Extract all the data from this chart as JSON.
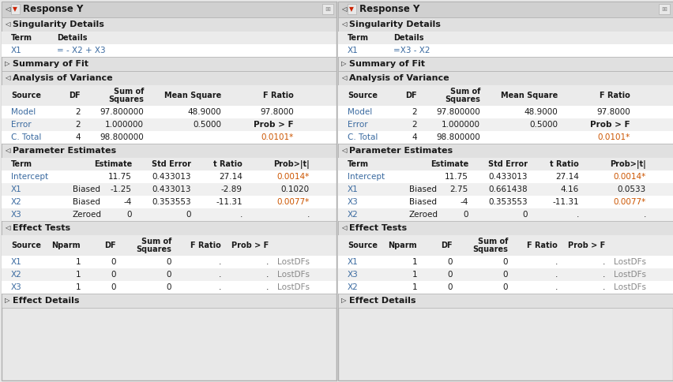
{
  "bg": "#e8e8e8",
  "panel_bg": "#f4f4f4",
  "header_bar_bg": "#d0d0d0",
  "section_hdr_bg": "#e0e0e0",
  "table_hdr_bg": "#ebebeb",
  "row_white": "#ffffff",
  "row_alt": "#f0f0f0",
  "blue": "#3a6aa0",
  "orange": "#cc5500",
  "black": "#1a1a1a",
  "gray": "#888888",
  "border": "#b0b0b0",
  "models": [
    {
      "title": "Response Y",
      "singularity_detail": [
        "X1",
        "= - X2 + X3"
      ],
      "anova": [
        [
          "Model",
          "2",
          "97.800000",
          "48.9000",
          "97.8000",
          "normal",
          "normal"
        ],
        [
          "Error",
          "2",
          "1.000000",
          "0.5000",
          "Prob > F",
          "normal",
          "bold"
        ],
        [
          "C. Total",
          "4",
          "98.800000",
          "",
          "0.0101*",
          "normal",
          "orange"
        ]
      ],
      "params": [
        [
          "Intercept",
          "",
          "11.75",
          "0.433013",
          "27.14",
          "0.0014*"
        ],
        [
          "X1",
          "Biased",
          "-1.25",
          "0.433013",
          "-2.89",
          "0.1020"
        ],
        [
          "X2",
          "Biased",
          "-4",
          "0.353553",
          "-11.31",
          "0.0077*"
        ],
        [
          "X3",
          "Zeroed",
          "0",
          "0",
          ".",
          "."
        ]
      ],
      "effects": [
        [
          "X1",
          "1",
          "0",
          "0",
          ".",
          ".",
          "LostDFs"
        ],
        [
          "X2",
          "1",
          "0",
          "0",
          ".",
          ".",
          "LostDFs"
        ],
        [
          "X3",
          "1",
          "0",
          "0",
          ".",
          ".",
          "LostDFs"
        ]
      ]
    },
    {
      "title": "Response Y",
      "singularity_detail": [
        "X1",
        "=X3 - X2"
      ],
      "anova": [
        [
          "Model",
          "2",
          "97.800000",
          "48.9000",
          "97.8000",
          "normal",
          "normal"
        ],
        [
          "Error",
          "2",
          "1.000000",
          "0.5000",
          "Prob > F",
          "normal",
          "bold"
        ],
        [
          "C. Total",
          "4",
          "98.800000",
          "",
          "0.0101*",
          "normal",
          "orange"
        ]
      ],
      "params": [
        [
          "Intercept",
          "",
          "11.75",
          "0.433013",
          "27.14",
          "0.0014*"
        ],
        [
          "X1",
          "Biased",
          "2.75",
          "0.661438",
          "4.16",
          "0.0533"
        ],
        [
          "X3",
          "Biased",
          "-4",
          "0.353553",
          "-11.31",
          "0.0077*"
        ],
        [
          "X2",
          "Zeroed",
          "0",
          "0",
          ".",
          "."
        ]
      ],
      "effects": [
        [
          "X1",
          "1",
          "0",
          "0",
          ".",
          ".",
          "LostDFs"
        ],
        [
          "X3",
          "1",
          "0",
          "0",
          ".",
          ".",
          "LostDFs"
        ],
        [
          "X2",
          "1",
          "0",
          "0",
          ".",
          ".",
          "LostDFs"
        ]
      ]
    }
  ]
}
